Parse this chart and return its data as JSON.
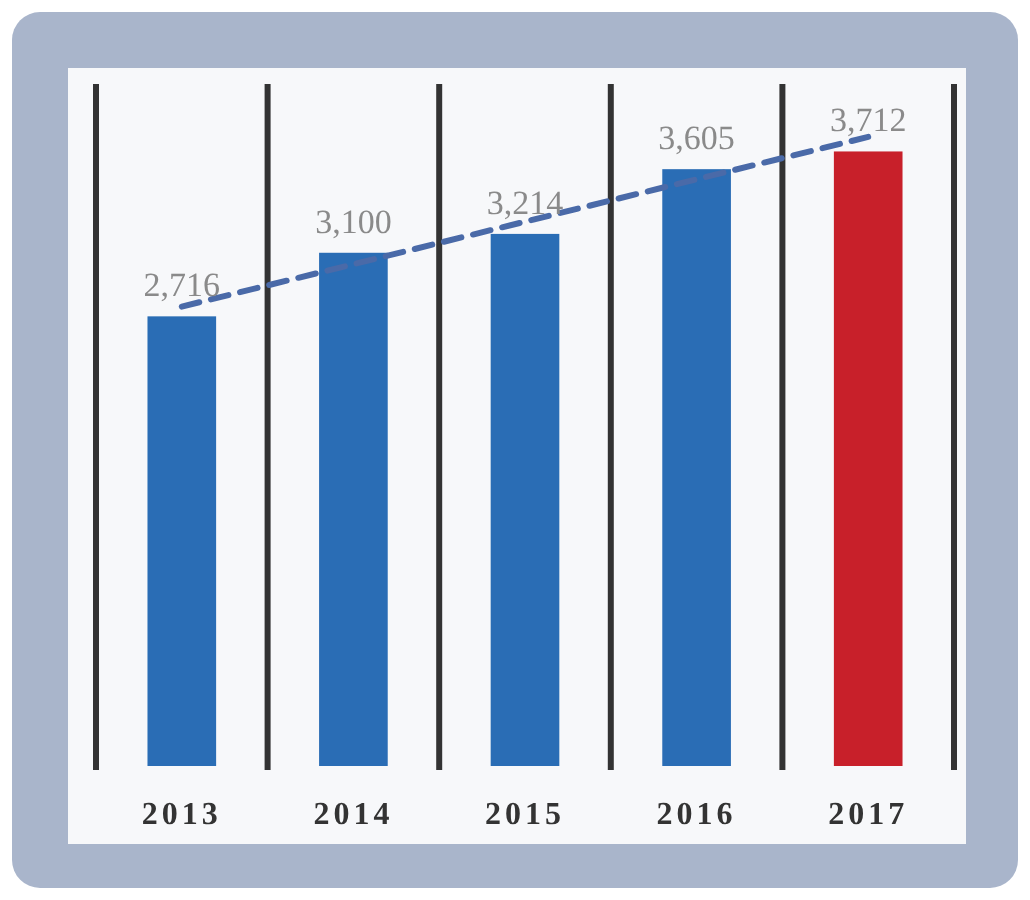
{
  "chart_data": {
    "type": "bar",
    "categories": [
      "2013",
      "2014",
      "2015",
      "2016",
      "2017"
    ],
    "values": [
      2716,
      3100,
      3214,
      3605,
      3712
    ],
    "colors": [
      "#2a6db5",
      "#2a6db5",
      "#2a6db5",
      "#2a6db5",
      "#c8202a"
    ],
    "value_labels": [
      "2,716",
      "3,100",
      "3,214",
      "3,605",
      "3,712"
    ],
    "grid": "x",
    "series": [
      {
        "type": "line",
        "values": [
          2775,
          3031,
          3288,
          3544,
          3800
        ],
        "color": "#4a6aa8",
        "line_style": "dashed",
        "marker": "none"
      }
    ]
  }
}
